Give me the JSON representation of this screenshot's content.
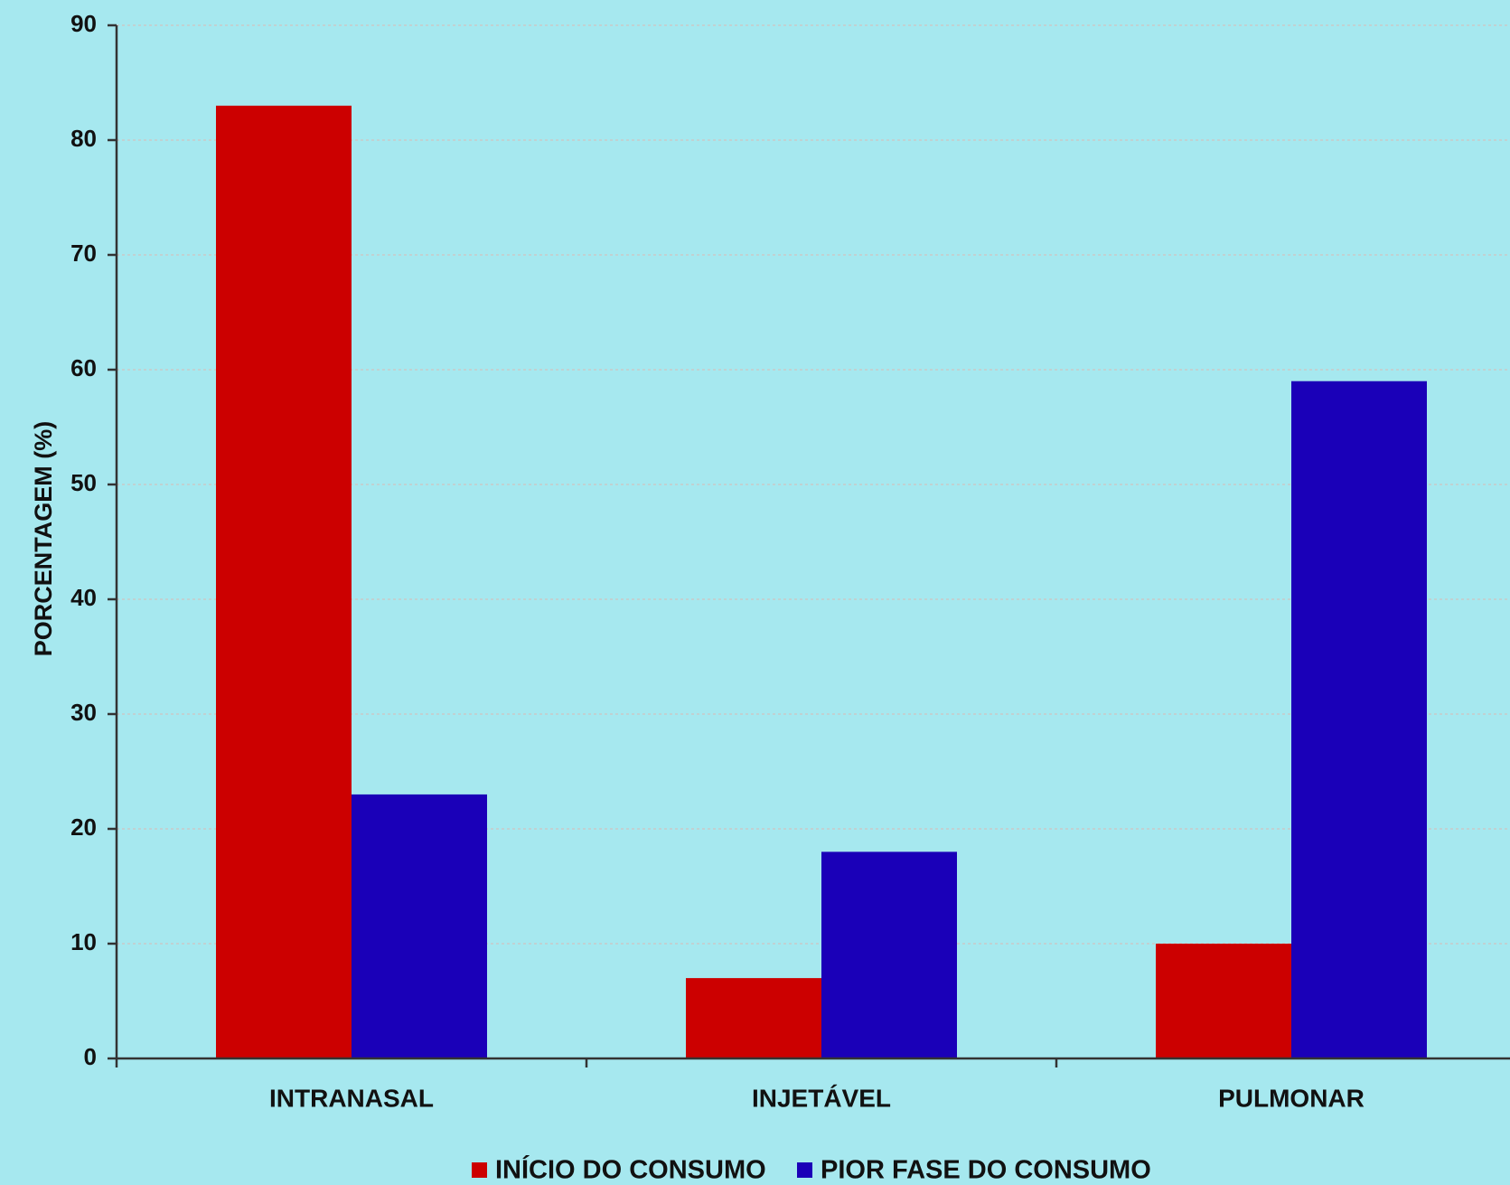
{
  "chart_data": {
    "type": "bar",
    "title": "",
    "xlabel": "",
    "ylabel": "PORCENTAGEM (%)",
    "categories": [
      "INTRANASAL",
      "INJETÁVEL",
      "PULMONAR"
    ],
    "series": [
      {
        "name": "INÍCIO DO CONSUMO",
        "values": [
          83,
          7,
          10
        ],
        "color": "#cc0000"
      },
      {
        "name": "PIOR FASE DO CONSUMO",
        "values": [
          23,
          18,
          59
        ],
        "color": "#1a00b8"
      }
    ],
    "yticks": [
      "0",
      "10",
      "20",
      "30",
      "40",
      "50",
      "60",
      "70",
      "80",
      "90"
    ],
    "ylim": [
      0,
      90
    ],
    "grid": true,
    "legend_position": "bottom-center"
  },
  "colors": {
    "background": "#a6e8ef",
    "axis": "#333333",
    "grid": "#c9c9c9"
  }
}
